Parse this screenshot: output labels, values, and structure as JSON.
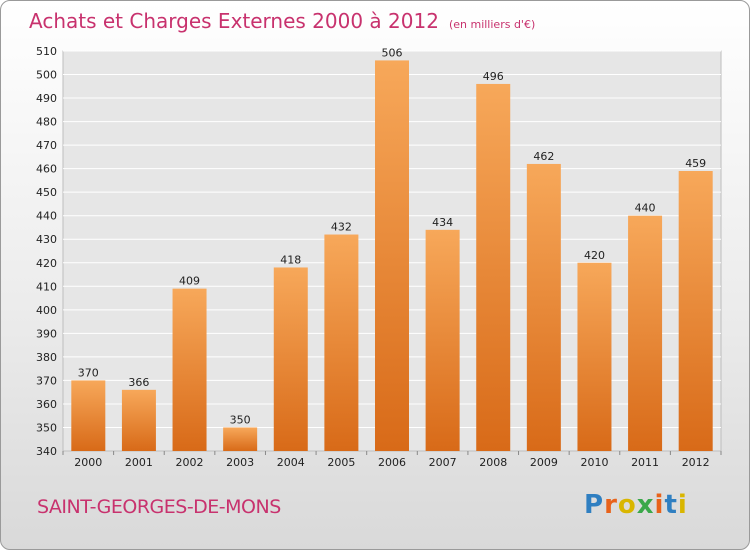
{
  "header": {
    "title": "Achats et Charges Externes 2000 à 2012",
    "subtitle": "(en milliers d'€)"
  },
  "footer": {
    "city": "SAINT-GEORGES-DE-MONS",
    "logo": {
      "letters": [
        "P",
        "r",
        "o",
        "x",
        "i",
        "t",
        "i"
      ],
      "colors": [
        "#2f7fc1",
        "#e8621a",
        "#d9b600",
        "#3aa84a",
        "#e8621a",
        "#2f7fc1",
        "#d9b600"
      ]
    }
  },
  "colors": {
    "bar_top": "#f7a85a",
    "bar_bottom": "#d86a18",
    "title": "#c8326e"
  },
  "chart_data": {
    "type": "bar",
    "title": "Achats et Charges Externes 2000 à 2012",
    "subtitle": "(en milliers d'€)",
    "xlabel": "",
    "ylabel": "",
    "categories": [
      "2000",
      "2001",
      "2002",
      "2003",
      "2004",
      "2005",
      "2006",
      "2007",
      "2008",
      "2009",
      "2010",
      "2011",
      "2012"
    ],
    "values": [
      370,
      366,
      409,
      350,
      418,
      432,
      506,
      434,
      496,
      462,
      420,
      440,
      459
    ],
    "value_labels": [
      "370",
      "366",
      "409",
      "350",
      "418",
      "432",
      "506",
      "434",
      "496",
      "462",
      "420",
      "440",
      "459"
    ],
    "ylim": [
      340,
      510
    ],
    "yticks": [
      "340",
      "350",
      "360",
      "370",
      "380",
      "390",
      "400",
      "410",
      "420",
      "430",
      "440",
      "450",
      "460",
      "470",
      "480",
      "490",
      "500",
      "510"
    ],
    "grid": true
  }
}
